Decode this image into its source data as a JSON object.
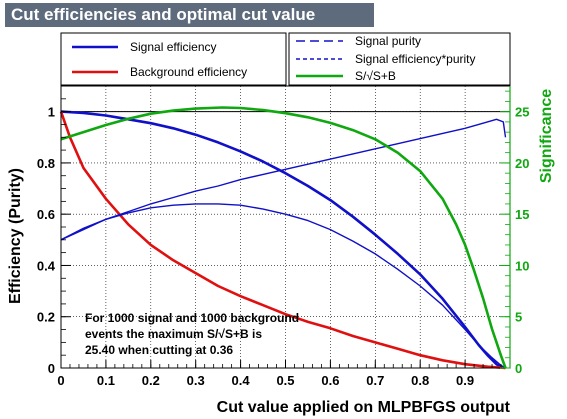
{
  "title": "Cut efficiencies and optimal cut value",
  "chart_data": {
    "type": "line",
    "xlabel": "Cut value applied on MLPBFGS output",
    "ylabel": "Efficiency (Purity)",
    "ylabel_right": "Significance",
    "xlim": [
      0,
      1
    ],
    "ylim": [
      0,
      1.1
    ],
    "ylim_right": [
      0,
      27.5
    ],
    "x_ticks": [
      "0",
      "0.1",
      "0.2",
      "0.3",
      "0.4",
      "0.5",
      "0.6",
      "0.7",
      "0.8",
      "0.9"
    ],
    "y_ticks": [
      "0",
      "0.2",
      "0.4",
      "0.6",
      "0.8",
      "1"
    ],
    "y_ticks_right": [
      "0",
      "5",
      "10",
      "15",
      "20",
      "25"
    ],
    "grid": true,
    "series": [
      {
        "name": "Signal efficiency",
        "axis": "left",
        "color": "#1010c8",
        "style": "solid-thick",
        "x": [
          0,
          0.05,
          0.1,
          0.15,
          0.2,
          0.25,
          0.3,
          0.35,
          0.4,
          0.45,
          0.5,
          0.55,
          0.6,
          0.65,
          0.7,
          0.75,
          0.8,
          0.85,
          0.9,
          0.93,
          0.95,
          0.97,
          0.98,
          0.99
        ],
        "y": [
          1.0,
          0.995,
          0.985,
          0.97,
          0.955,
          0.935,
          0.91,
          0.88,
          0.845,
          0.805,
          0.76,
          0.71,
          0.655,
          0.59,
          0.52,
          0.445,
          0.365,
          0.27,
          0.16,
          0.09,
          0.05,
          0.015,
          0.005,
          0.0
        ]
      },
      {
        "name": "Background efficiency",
        "axis": "left",
        "color": "#e01010",
        "style": "solid-thick",
        "x": [
          0,
          0.02,
          0.05,
          0.1,
          0.15,
          0.2,
          0.25,
          0.3,
          0.35,
          0.4,
          0.45,
          0.5,
          0.55,
          0.6,
          0.65,
          0.7,
          0.75,
          0.8,
          0.85,
          0.9,
          0.95,
          0.99
        ],
        "y": [
          1.0,
          0.9,
          0.78,
          0.66,
          0.56,
          0.48,
          0.42,
          0.37,
          0.32,
          0.28,
          0.245,
          0.21,
          0.18,
          0.155,
          0.125,
          0.1,
          0.075,
          0.05,
          0.03,
          0.015,
          0.005,
          0.0
        ]
      },
      {
        "name": "Signal purity",
        "axis": "left",
        "color": "#1010c8",
        "style": "solid-thin",
        "x": [
          0,
          0.05,
          0.1,
          0.15,
          0.2,
          0.25,
          0.3,
          0.35,
          0.4,
          0.45,
          0.5,
          0.55,
          0.6,
          0.65,
          0.7,
          0.75,
          0.8,
          0.85,
          0.9,
          0.94,
          0.97,
          0.985,
          0.99
        ],
        "y": [
          0.5,
          0.54,
          0.58,
          0.61,
          0.64,
          0.665,
          0.69,
          0.71,
          0.735,
          0.755,
          0.775,
          0.795,
          0.815,
          0.835,
          0.855,
          0.875,
          0.895,
          0.915,
          0.935,
          0.955,
          0.97,
          0.96,
          0.9
        ]
      },
      {
        "name": "Signal efficiency*purity",
        "axis": "left",
        "color": "#1010c8",
        "style": "solid-thin",
        "x": [
          0,
          0.05,
          0.1,
          0.15,
          0.2,
          0.25,
          0.3,
          0.35,
          0.4,
          0.45,
          0.5,
          0.55,
          0.6,
          0.65,
          0.7,
          0.75,
          0.8,
          0.85,
          0.9,
          0.93,
          0.96,
          0.98,
          0.99
        ],
        "y": [
          0.5,
          0.545,
          0.58,
          0.605,
          0.625,
          0.635,
          0.64,
          0.64,
          0.635,
          0.62,
          0.6,
          0.575,
          0.54,
          0.495,
          0.445,
          0.385,
          0.32,
          0.245,
          0.15,
          0.09,
          0.04,
          0.01,
          0.0
        ]
      },
      {
        "name": "S/√S+B",
        "axis": "right",
        "color": "#10a810",
        "style": "solid-thick",
        "x": [
          0,
          0.05,
          0.1,
          0.15,
          0.2,
          0.25,
          0.3,
          0.36,
          0.4,
          0.45,
          0.5,
          0.55,
          0.6,
          0.65,
          0.7,
          0.75,
          0.8,
          0.85,
          0.88,
          0.9,
          0.92,
          0.94,
          0.96,
          0.98,
          0.99
        ],
        "y": [
          22.3,
          23.0,
          23.7,
          24.3,
          24.8,
          25.1,
          25.3,
          25.4,
          25.35,
          25.15,
          24.85,
          24.45,
          23.9,
          23.2,
          22.3,
          21.0,
          19.2,
          16.5,
          14.0,
          12.0,
          9.5,
          6.8,
          3.8,
          1.2,
          0.0
        ]
      }
    ],
    "annotation": [
      "For 1000 signal and 1000 background",
      "events the maximum S/√S+B is",
      "25.40 when cutting at  0.36"
    ]
  },
  "legend_left": [
    "Signal efficiency",
    "Background efficiency"
  ],
  "legend_right": [
    "Signal purity",
    "Signal efficiency*purity",
    "S/√S+B"
  ]
}
